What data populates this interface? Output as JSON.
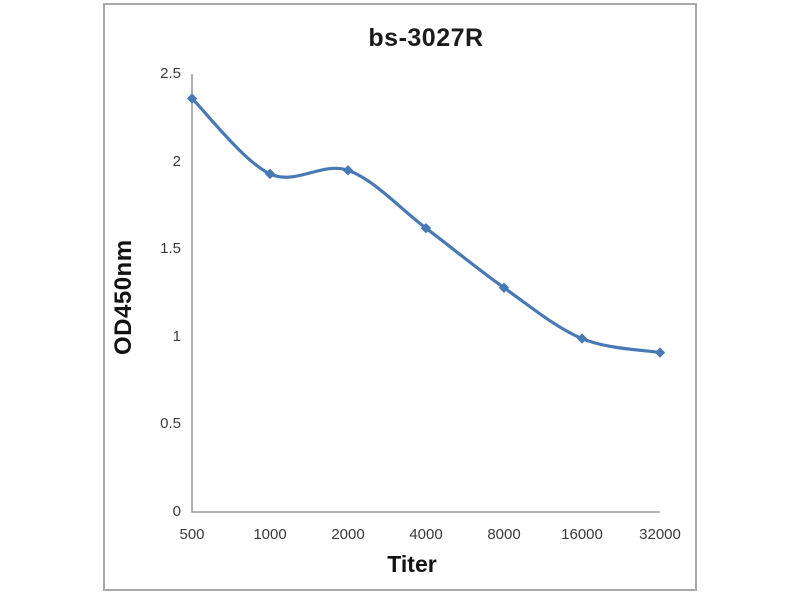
{
  "window": {
    "background": "#ffffff",
    "panel_border_color": "#a9a9a9"
  },
  "chart_data": {
    "type": "line",
    "title": "bs-3027R",
    "xlabel": "Titer",
    "ylabel": "OD450nm",
    "x_scale": "categorical (1:2 serial dilution)",
    "categories": [
      "500",
      "1000",
      "2000",
      "4000",
      "8000",
      "16000",
      "32000"
    ],
    "series": [
      {
        "name": "bs-3027R",
        "color": "#4779b5",
        "marker": "diamond",
        "smooth": true,
        "values": [
          2.36,
          1.93,
          1.95,
          1.62,
          1.28,
          0.99,
          0.91
        ]
      }
    ],
    "y_ticks": [
      2.5,
      2,
      1.5,
      1,
      0.5,
      0
    ],
    "ylim": [
      0,
      2.5
    ],
    "grid": false,
    "legend_position": "none",
    "axis_color": "#9b9b9b",
    "tick_label_color": "#3a3a3a"
  }
}
